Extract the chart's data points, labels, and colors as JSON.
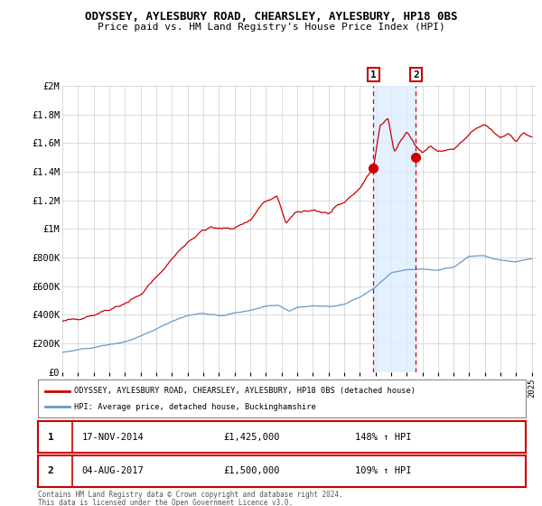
{
  "title": "ODYSSEY, AYLESBURY ROAD, CHEARSLEY, AYLESBURY, HP18 0BS",
  "subtitle": "Price paid vs. HM Land Registry's House Price Index (HPI)",
  "x_start_year": 1995,
  "x_end_year": 2025,
  "y_min": 0,
  "y_max": 2000000,
  "y_ticks": [
    0,
    200000,
    400000,
    600000,
    800000,
    1000000,
    1200000,
    1400000,
    1600000,
    1800000,
    2000000
  ],
  "y_tick_labels": [
    "£0",
    "£200K",
    "£400K",
    "£600K",
    "£800K",
    "£1M",
    "£1.2M",
    "£1.4M",
    "£1.6M",
    "£1.8M",
    "£2M"
  ],
  "red_line_color": "#cc0000",
  "blue_line_color": "#6699cc",
  "point1_year": 2014.88,
  "point1_value": 1425000,
  "point2_year": 2017.59,
  "point2_value": 1500000,
  "point1_label": "£1,425,000",
  "point2_label": "£1,500,000",
  "point1_date": "17-NOV-2014",
  "point2_date": "04-AUG-2017",
  "point1_hpi": "148% ↑ HPI",
  "point2_hpi": "109% ↑ HPI",
  "legend_red_label": "ODYSSEY, AYLESBURY ROAD, CHEARSLEY, AYLESBURY, HP18 0BS (detached house)",
  "legend_blue_label": "HPI: Average price, detached house, Buckinghamshire",
  "footer_line1": "Contains HM Land Registry data © Crown copyright and database right 2024.",
  "footer_line2": "This data is licensed under the Open Government Licence v3.0.",
  "background_color": "#ffffff",
  "grid_color": "#cccccc",
  "shade_color": "#ddeeff",
  "xlim_left": 1995,
  "xlim_right": 2025.3
}
